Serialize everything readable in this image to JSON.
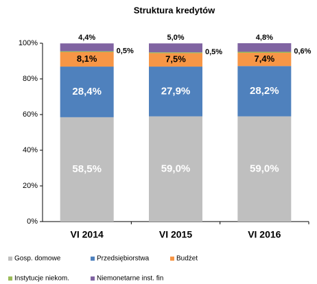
{
  "chart_data": {
    "type": "stacked_bar",
    "title": "Struktura kredytów",
    "categories": [
      "VI 2014",
      "VI 2015",
      "VI 2016"
    ],
    "series": [
      {
        "name": "Gosp. domowe",
        "color": "#bfbfbf",
        "values": [
          58.5,
          59.0,
          59.0
        ],
        "value_labels": [
          "58,5%",
          "59,0%",
          "59,0%"
        ]
      },
      {
        "name": "Przedsiębiorstwa",
        "color": "#4f81bd",
        "values": [
          28.4,
          27.9,
          28.2
        ],
        "value_labels": [
          "28,4%",
          "27,9%",
          "28,2%"
        ]
      },
      {
        "name": "Budżet",
        "color": "#f79646",
        "values": [
          8.1,
          7.5,
          7.4
        ],
        "value_labels": [
          "8,1%",
          "7,5%",
          "7,4%"
        ]
      },
      {
        "name": "Instytucje niekom.",
        "color": "#9bbb59",
        "values": [
          0.5,
          0.5,
          0.6
        ],
        "value_labels": [
          "0,5%",
          "0,5%",
          "0,6%"
        ]
      },
      {
        "name": "Niemonetarne inst. fin",
        "color": "#8064a2",
        "values": [
          4.4,
          5.0,
          4.8
        ],
        "value_labels": [
          "4,4%",
          "5,0%",
          "4,8%"
        ]
      }
    ],
    "ylim": [
      0,
      100
    ],
    "yticks": [
      {
        "value": 0,
        "label": "0%"
      },
      {
        "value": 20,
        "label": "20%"
      },
      {
        "value": 40,
        "label": "40%"
      },
      {
        "value": 60,
        "label": "60%"
      },
      {
        "value": 80,
        "label": "80%"
      },
      {
        "value": 100,
        "label": "100%"
      }
    ]
  }
}
